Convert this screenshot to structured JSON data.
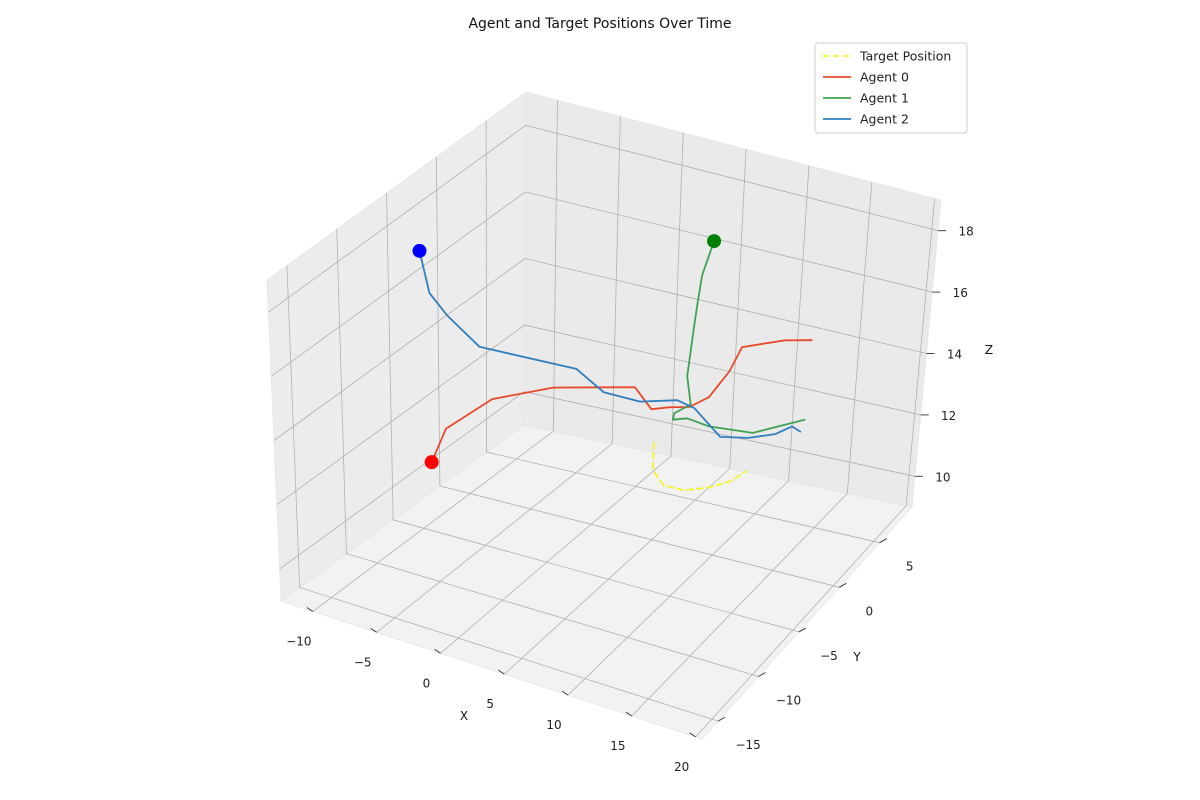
{
  "chart_data": {
    "type": "line3d",
    "title": "Agent and Target Positions Over Time",
    "xlabel": "X",
    "ylabel": "Y",
    "zlabel": "Z",
    "xlim": [
      -12.5,
      20.5
    ],
    "ylim": [
      -17,
      9
    ],
    "zlim": [
      9,
      19
    ],
    "xticks": [
      -10,
      -5,
      0,
      5,
      10,
      15,
      20
    ],
    "yticks": [
      -15,
      -10,
      -5,
      0,
      5
    ],
    "zticks": [
      10,
      12,
      14,
      16,
      18
    ],
    "legend_position": "top-right",
    "grid": true,
    "series": [
      {
        "name": "Target Position",
        "style": "dashed",
        "color": "#f5f52a",
        "points": [
          [
            5.0,
            0.0,
            12.0
          ],
          [
            4.6,
            0.5,
            11.0
          ],
          [
            4.8,
            1.5,
            10.3
          ],
          [
            5.6,
            2.8,
            9.9
          ],
          [
            6.8,
            4.0,
            9.8
          ],
          [
            8.0,
            4.8,
            9.9
          ],
          [
            9.0,
            5.2,
            10.2
          ]
        ]
      },
      {
        "name": "Agent 0",
        "color": "#e8492a",
        "start_marker_color": "#ff0000",
        "points": [
          [
            -7.0,
            -8.0,
            12.0
          ],
          [
            -6.2,
            -7.5,
            13.0
          ],
          [
            -4.0,
            -5.5,
            13.7
          ],
          [
            -1.0,
            -3.0,
            13.8
          ],
          [
            1.5,
            -1.0,
            13.6
          ],
          [
            3.0,
            0.5,
            13.4
          ],
          [
            4.0,
            1.0,
            12.7
          ],
          [
            4.8,
            2.0,
            12.6
          ],
          [
            6.0,
            2.5,
            12.6
          ],
          [
            7.2,
            3.0,
            12.9
          ],
          [
            8.2,
            3.8,
            13.6
          ],
          [
            8.8,
            4.3,
            14.3
          ],
          [
            11.0,
            6.0,
            14.3
          ],
          [
            12.5,
            7.0,
            14.2
          ]
        ]
      },
      {
        "name": "Agent 1",
        "color": "#3fa352",
        "start_marker_color": "#008000",
        "points": [
          [
            10.0,
            -1.0,
            19.0
          ],
          [
            8.8,
            -0.5,
            17.7
          ],
          [
            7.8,
            0.5,
            16.5
          ],
          [
            7.2,
            1.0,
            15.5
          ],
          [
            6.8,
            1.0,
            14.0
          ],
          [
            6.8,
            1.5,
            13.0
          ],
          [
            5.5,
            1.5,
            12.6
          ],
          [
            5.2,
            1.8,
            12.3
          ],
          [
            6.0,
            2.3,
            12.3
          ],
          [
            7.3,
            3.0,
            12.0
          ],
          [
            9.5,
            5.0,
            11.5
          ],
          [
            12.0,
            7.5,
            11.5
          ]
        ]
      },
      {
        "name": "Agent 2",
        "color": "#2e7fbf",
        "start_marker_color": "#0000ff",
        "points": [
          [
            -10.0,
            -5.0,
            17.5
          ],
          [
            -9.5,
            -4.7,
            16.2
          ],
          [
            -8.5,
            -4.2,
            15.5
          ],
          [
            -6.5,
            -3.5,
            14.6
          ],
          [
            -4.0,
            -2.0,
            14.2
          ],
          [
            -1.0,
            -0.5,
            13.8
          ],
          [
            0.5,
            0.5,
            13.0
          ],
          [
            2.5,
            1.8,
            12.6
          ],
          [
            4.5,
            3.2,
            12.5
          ],
          [
            5.5,
            3.8,
            12.2
          ],
          [
            7.0,
            4.8,
            11.2
          ],
          [
            8.5,
            6.0,
            11.0
          ],
          [
            10.0,
            7.0,
            11.0
          ],
          [
            11.0,
            7.5,
            11.2
          ],
          [
            11.5,
            7.8,
            11.0
          ]
        ]
      }
    ]
  }
}
